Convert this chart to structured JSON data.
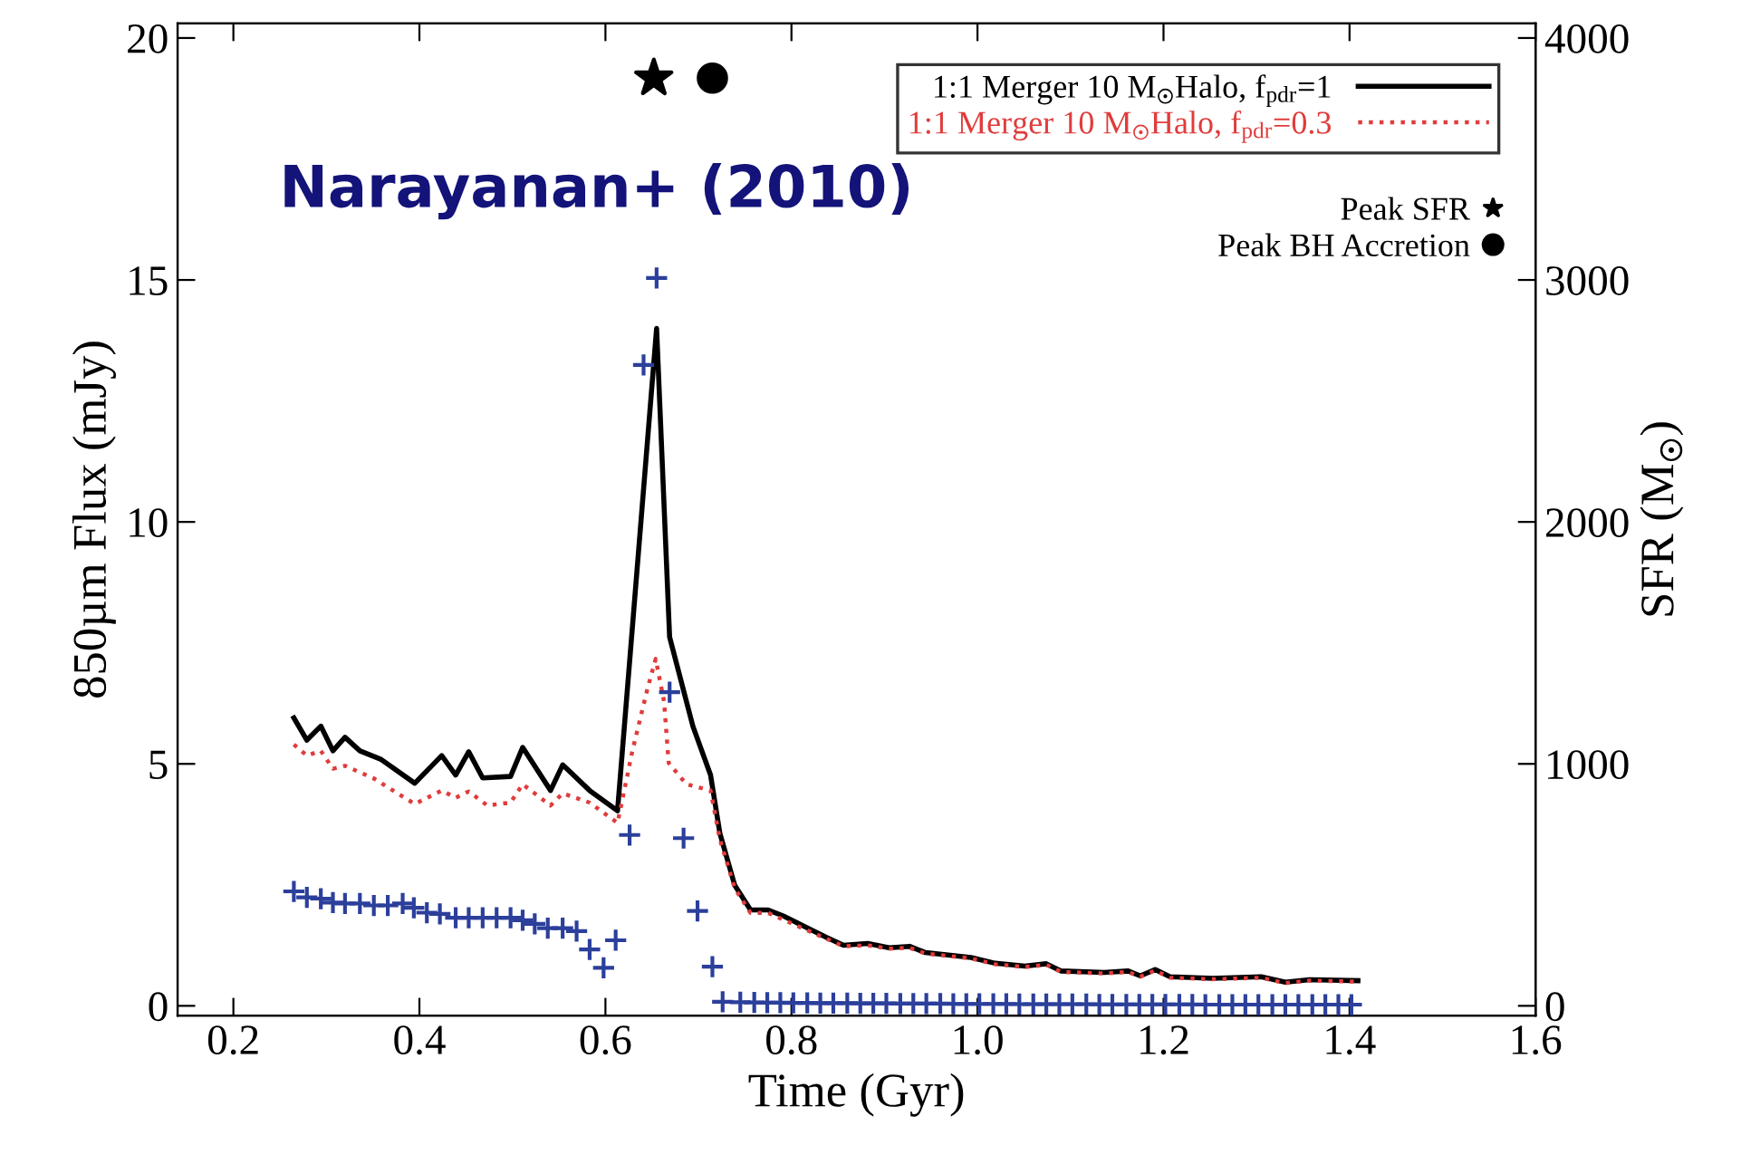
{
  "chart_data": {
    "type": "line",
    "xlabel": "Time (Gyr)",
    "ylabel": "850µm Flux (mJy)",
    "y2label": "SFR (M$_{☉}$)",
    "xlim": [
      0.14,
      1.6
    ],
    "xticks": [
      0.2,
      0.4,
      0.6,
      0.8,
      {
        "value": 1.0,
        "label": "1.0"
      },
      1.2,
      1.4,
      1.6
    ],
    "ylim": [
      -0.2,
      20.3
    ],
    "yticks": [
      0,
      5,
      10,
      15,
      20
    ],
    "y2lim": [
      -40,
      4060
    ],
    "y2ticks": [
      0,
      1000,
      2000,
      3000,
      4000
    ],
    "legend": "top right",
    "grid": false,
    "annotations": [
      "Narayanan+ (2010)"
    ],
    "series": [
      {
        "name": "1:1 Merger 10 M$_{☉}$Halo, f$_{pdr}$=1",
        "type": "line",
        "color": "#000000",
        "line_style": "solid",
        "marker": "none",
        "x": [
          0.265,
          0.279,
          0.294,
          0.307,
          0.32,
          0.336,
          0.359,
          0.395,
          0.424,
          0.439,
          0.453,
          0.468,
          0.498,
          0.511,
          0.541,
          0.554,
          0.583,
          0.613,
          0.655,
          0.669,
          0.694,
          0.713,
          0.723,
          0.739,
          0.756,
          0.775,
          0.791,
          0.811,
          0.837,
          0.856,
          0.882,
          0.905,
          0.927,
          0.944,
          0.993,
          1.019,
          1.051,
          1.074,
          1.09,
          1.136,
          1.162,
          1.175,
          1.191,
          1.207,
          1.253,
          1.305,
          1.331,
          1.357,
          1.409
        ],
        "values": [
          5.95,
          5.49,
          5.78,
          5.27,
          5.55,
          5.27,
          5.09,
          4.6,
          5.17,
          4.77,
          5.25,
          4.71,
          4.74,
          5.34,
          4.45,
          4.98,
          4.45,
          4.03,
          14.0,
          7.62,
          5.78,
          4.77,
          3.57,
          2.49,
          1.98,
          1.98,
          1.86,
          1.67,
          1.42,
          1.25,
          1.29,
          1.2,
          1.23,
          1.1,
          1.0,
          0.88,
          0.82,
          0.87,
          0.72,
          0.69,
          0.72,
          0.62,
          0.75,
          0.6,
          0.57,
          0.6,
          0.49,
          0.54,
          0.52
        ]
      },
      {
        "name": "1:1 Merger 10 M$_{☉}$Halo, f$_{pdr}$=0.3",
        "type": "line",
        "color": "#e03c3c",
        "line_style": "dotted",
        "marker": "none",
        "x": [
          0.265,
          0.279,
          0.294,
          0.307,
          0.32,
          0.35,
          0.395,
          0.424,
          0.439,
          0.453,
          0.473,
          0.498,
          0.511,
          0.541,
          0.554,
          0.583,
          0.613,
          0.629,
          0.645,
          0.654,
          0.663,
          0.668,
          0.687,
          0.713,
          0.723,
          0.739,
          0.756,
          0.775,
          0.811,
          0.856,
          0.882,
          0.905,
          0.927,
          0.944,
          0.993,
          1.019,
          1.051,
          1.074,
          1.09,
          1.136,
          1.162,
          1.175,
          1.191,
          1.207,
          1.253,
          1.305,
          1.331,
          1.357,
          1.409
        ],
        "values": [
          5.4,
          5.17,
          5.27,
          4.9,
          4.96,
          4.71,
          4.17,
          4.45,
          4.3,
          4.43,
          4.14,
          4.2,
          4.58,
          4.14,
          4.39,
          4.2,
          3.78,
          5.27,
          6.54,
          7.17,
          6.29,
          5.02,
          4.58,
          4.45,
          3.44,
          2.43,
          1.92,
          1.92,
          1.61,
          1.23,
          1.25,
          1.18,
          1.2,
          1.08,
          0.98,
          0.86,
          0.8,
          0.85,
          0.7,
          0.67,
          0.7,
          0.6,
          0.73,
          0.58,
          0.55,
          0.58,
          0.47,
          0.52,
          0.5
        ]
      },
      {
        "type": "scatter",
        "axis": "y2",
        "color": "#2b3f9b",
        "marker": "cross",
        "x": [
          0.265,
          0.279,
          0.294,
          0.307,
          0.32,
          0.336,
          0.351,
          0.366,
          0.382,
          0.394,
          0.408,
          0.422,
          0.439,
          0.453,
          0.468,
          0.483,
          0.498,
          0.511,
          0.524,
          0.538,
          0.554,
          0.569,
          0.583,
          0.598,
          0.611,
          0.626,
          0.641,
          0.655,
          0.669,
          0.684,
          0.699,
          0.715,
          0.726,
          0.745,
          0.76,
          0.774,
          0.788,
          0.802,
          0.817,
          0.831,
          0.845,
          0.86,
          0.874,
          0.888,
          0.902,
          0.917,
          0.931,
          0.945,
          0.96,
          0.974,
          0.988,
          1.002,
          1.017,
          1.031,
          1.045,
          1.06,
          1.074,
          1.088,
          1.102,
          1.117,
          1.131,
          1.145,
          1.16,
          1.174,
          1.188,
          1.202,
          1.217,
          1.231,
          1.245,
          1.26,
          1.274,
          1.288,
          1.302,
          1.317,
          1.331,
          1.345,
          1.36,
          1.374,
          1.388,
          1.402
        ],
        "values": [
          473,
          448,
          443,
          427,
          423,
          423,
          415,
          415,
          423,
          405,
          385,
          380,
          364,
          364,
          364,
          364,
          364,
          354,
          339,
          321,
          321,
          309,
          233,
          157,
          271,
          706,
          2649,
          3008,
          1296,
          693,
          392,
          162,
          17,
          15,
          14,
          13,
          13,
          12,
          12,
          11,
          11,
          11,
          10,
          10,
          10,
          9,
          9,
          9,
          9,
          8,
          8,
          8,
          8,
          8,
          7,
          7,
          7,
          7,
          7,
          7,
          6,
          6,
          6,
          6,
          6,
          6,
          6,
          6,
          5,
          5,
          5,
          5,
          5,
          5,
          5,
          5,
          5,
          5,
          5,
          5
        ]
      },
      {
        "name": "Peak SFR",
        "type": "scatter",
        "color": "#000000",
        "marker": "star",
        "x": [
          0.652
        ],
        "values": [
          19.17
        ]
      },
      {
        "name": "Peak BH Accretion",
        "type": "scatter",
        "color": "#000000",
        "marker": "circle",
        "x": [
          0.715
        ],
        "values": [
          19.17
        ]
      }
    ]
  }
}
